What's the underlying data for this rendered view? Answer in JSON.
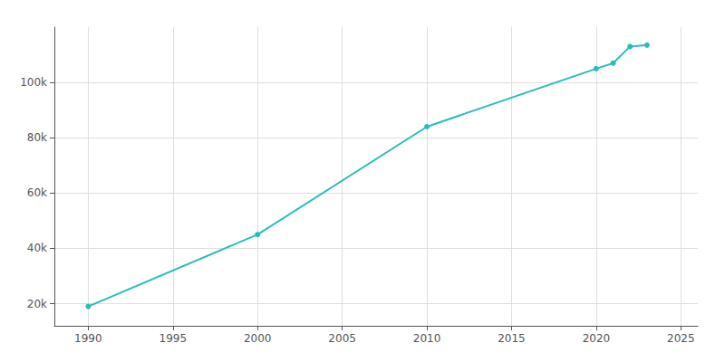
{
  "chart_data": {
    "type": "line",
    "x": [
      1990,
      2000,
      2010,
      2020,
      2021,
      2022,
      2023
    ],
    "values": [
      19000,
      45000,
      84000,
      105000,
      107000,
      113000,
      113500
    ],
    "color": "#29BCBC",
    "marker": "circle",
    "xlim": [
      1988,
      2026
    ],
    "xticks": [
      1990,
      1995,
      2000,
      2005,
      2010,
      2015,
      2020,
      2025
    ],
    "ylim": [
      12000,
      120000
    ],
    "yticks": [
      {
        "value": 20000,
        "label": "20k"
      },
      {
        "value": 40000,
        "label": "40k"
      },
      {
        "value": 60000,
        "label": "60k"
      },
      {
        "value": 80000,
        "label": "80k"
      },
      {
        "value": 100000,
        "label": "100k"
      }
    ],
    "grid": true
  }
}
